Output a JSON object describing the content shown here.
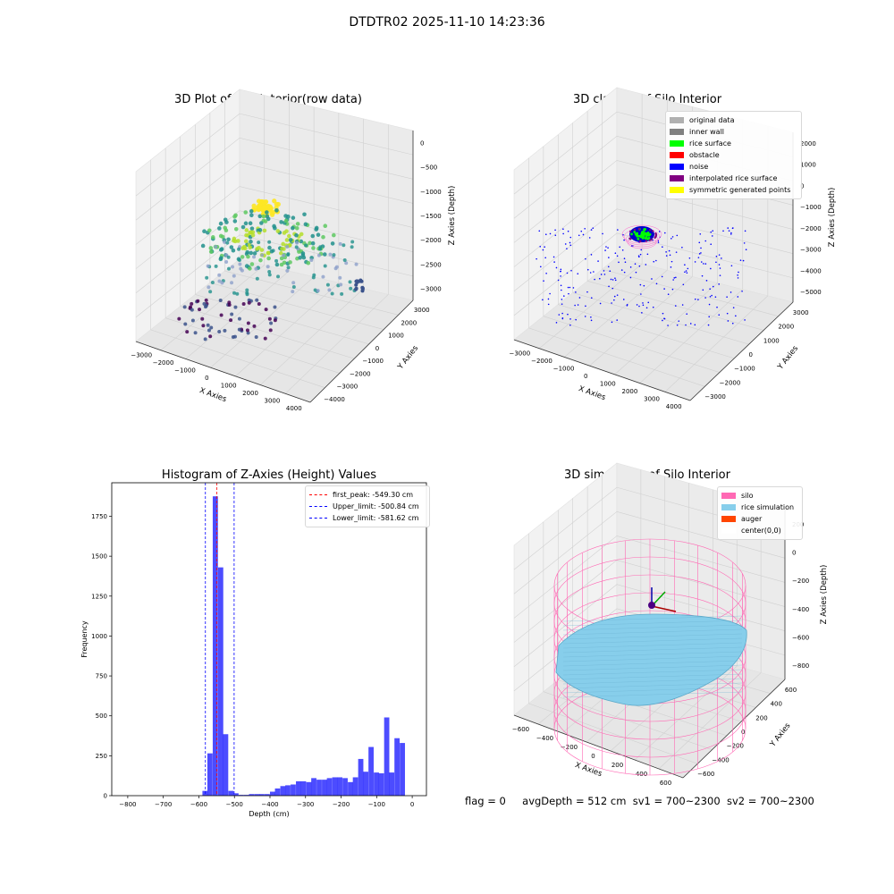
{
  "suptitle": "DTDTR02 2025-11-10 14:23:36",
  "panels": {
    "raw": {
      "title": "3D Plot of Silo Interior(row data)",
      "xlabel": "X Axies",
      "ylabel": "Y Axies",
      "zlabel": "Z Axies (Depth)",
      "xticks": [
        "−3000",
        "−2000",
        "−1000",
        "0",
        "1000",
        "2000",
        "3000",
        "4000"
      ],
      "yticks": [
        "−4000",
        "−3000",
        "−2000",
        "−1000",
        "0",
        "1000",
        "2000",
        "3000"
      ],
      "zticks": [
        "−3000",
        "−2500",
        "−2000",
        "−1500",
        "−1000",
        "−500",
        "0"
      ]
    },
    "classify": {
      "title": "3D classify of Silo Interior",
      "xlabel": "X Axies",
      "ylabel": "Y Axies",
      "zlabel": "Z Axies (Depth)",
      "xticks": [
        "−3000",
        "−2000",
        "−1000",
        "0",
        "1000",
        "2000",
        "3000",
        "4000"
      ],
      "yticks": [
        "−3000",
        "−2000",
        "−1000",
        "0",
        "1000",
        "2000",
        "3000"
      ],
      "zticks": [
        "−5000",
        "−4000",
        "−3000",
        "−2000",
        "−1000",
        "0",
        "1000",
        "2000"
      ],
      "legend": [
        {
          "label": "original data",
          "color": "#b0b0b0"
        },
        {
          "label": "inner wall",
          "color": "#808080"
        },
        {
          "label": "rice surface",
          "color": "#00ff00"
        },
        {
          "label": "obstacle",
          "color": "#ff0000"
        },
        {
          "label": "noise",
          "color": "#0000ff"
        },
        {
          "label": "interpolated rice surface",
          "color": "#800080"
        },
        {
          "label": "symmetric generated points",
          "color": "#ffff00"
        }
      ]
    },
    "simulation": {
      "title": "3D simulation of Silo Interior",
      "xlabel": "X Axies",
      "ylabel": "Y Axies",
      "zlabel": "Z Axies (Depth)",
      "xticks": [
        "−600",
        "−400",
        "−200",
        "0",
        "200",
        "400",
        "600"
      ],
      "yticks": [
        "−600",
        "−400",
        "−200",
        "0",
        "200",
        "400",
        "600"
      ],
      "zticks": [
        "−800",
        "−600",
        "−400",
        "−200",
        "0",
        "200"
      ],
      "legend": [
        {
          "label": "silo",
          "color": "#ff69b4"
        },
        {
          "label": "rice simulation",
          "color": "#87ceeb"
        },
        {
          "label": "auger",
          "color": "#ff4500"
        },
        {
          "label": "center(0,0)",
          "color": "#ffffff"
        }
      ]
    }
  },
  "chart_data": {
    "type": "bar",
    "title": "Histogram of Z-Axies (Height) Values",
    "xlabel": "Depth (cm)",
    "ylabel": "Frequency",
    "xlim": [
      -845,
      40
    ],
    "ylim": [
      0,
      1960
    ],
    "xticks": [
      -800,
      -700,
      -600,
      -500,
      -400,
      -300,
      -200,
      -100,
      0
    ],
    "yticks": [
      0,
      250,
      500,
      750,
      1000,
      1250,
      1500,
      1750
    ],
    "bin_width": 14.6,
    "bins": [
      {
        "x": -590,
        "count": 30
      },
      {
        "x": -576,
        "count": 265
      },
      {
        "x": -561,
        "count": 1875
      },
      {
        "x": -546,
        "count": 1430
      },
      {
        "x": -532,
        "count": 385
      },
      {
        "x": -517,
        "count": 30
      },
      {
        "x": -503,
        "count": 15
      },
      {
        "x": -488,
        "count": 5
      },
      {
        "x": -473,
        "count": 5
      },
      {
        "x": -459,
        "count": 10
      },
      {
        "x": -444,
        "count": 10
      },
      {
        "x": -430,
        "count": 10
      },
      {
        "x": -415,
        "count": 10
      },
      {
        "x": -400,
        "count": 25
      },
      {
        "x": -386,
        "count": 45
      },
      {
        "x": -371,
        "count": 60
      },
      {
        "x": -357,
        "count": 65
      },
      {
        "x": -342,
        "count": 70
      },
      {
        "x": -327,
        "count": 90
      },
      {
        "x": -313,
        "count": 90
      },
      {
        "x": -298,
        "count": 85
      },
      {
        "x": -284,
        "count": 110
      },
      {
        "x": -269,
        "count": 100
      },
      {
        "x": -254,
        "count": 100
      },
      {
        "x": -240,
        "count": 110
      },
      {
        "x": -225,
        "count": 115
      },
      {
        "x": -211,
        "count": 115
      },
      {
        "x": -196,
        "count": 110
      },
      {
        "x": -181,
        "count": 85
      },
      {
        "x": -167,
        "count": 115
      },
      {
        "x": -152,
        "count": 230
      },
      {
        "x": -138,
        "count": 150
      },
      {
        "x": -123,
        "count": 305
      },
      {
        "x": -108,
        "count": 145
      },
      {
        "x": -94,
        "count": 140
      },
      {
        "x": -79,
        "count": 490
      },
      {
        "x": -65,
        "count": 145
      },
      {
        "x": -50,
        "count": 360
      },
      {
        "x": -35,
        "count": 330
      }
    ],
    "vlines": [
      {
        "label": "first_peak: -549.30 cm",
        "x": -549.3,
        "color": "#ff0000"
      },
      {
        "label": "Upper_limit: -500.84 cm",
        "x": -500.84,
        "color": "#0000ff"
      },
      {
        "label": "Lower_limit: -581.62 cm",
        "x": -581.62,
        "color": "#0000ff"
      }
    ],
    "bar_color": "#0000ff",
    "bar_alpha": 0.7,
    "legend_position": "upper right"
  },
  "footer": {
    "flag": "flag = 0",
    "avg": "avgDepth = 512 cm",
    "sv1": "sv1 = 700~2300",
    "sv2": "sv2 = 700~2300"
  }
}
